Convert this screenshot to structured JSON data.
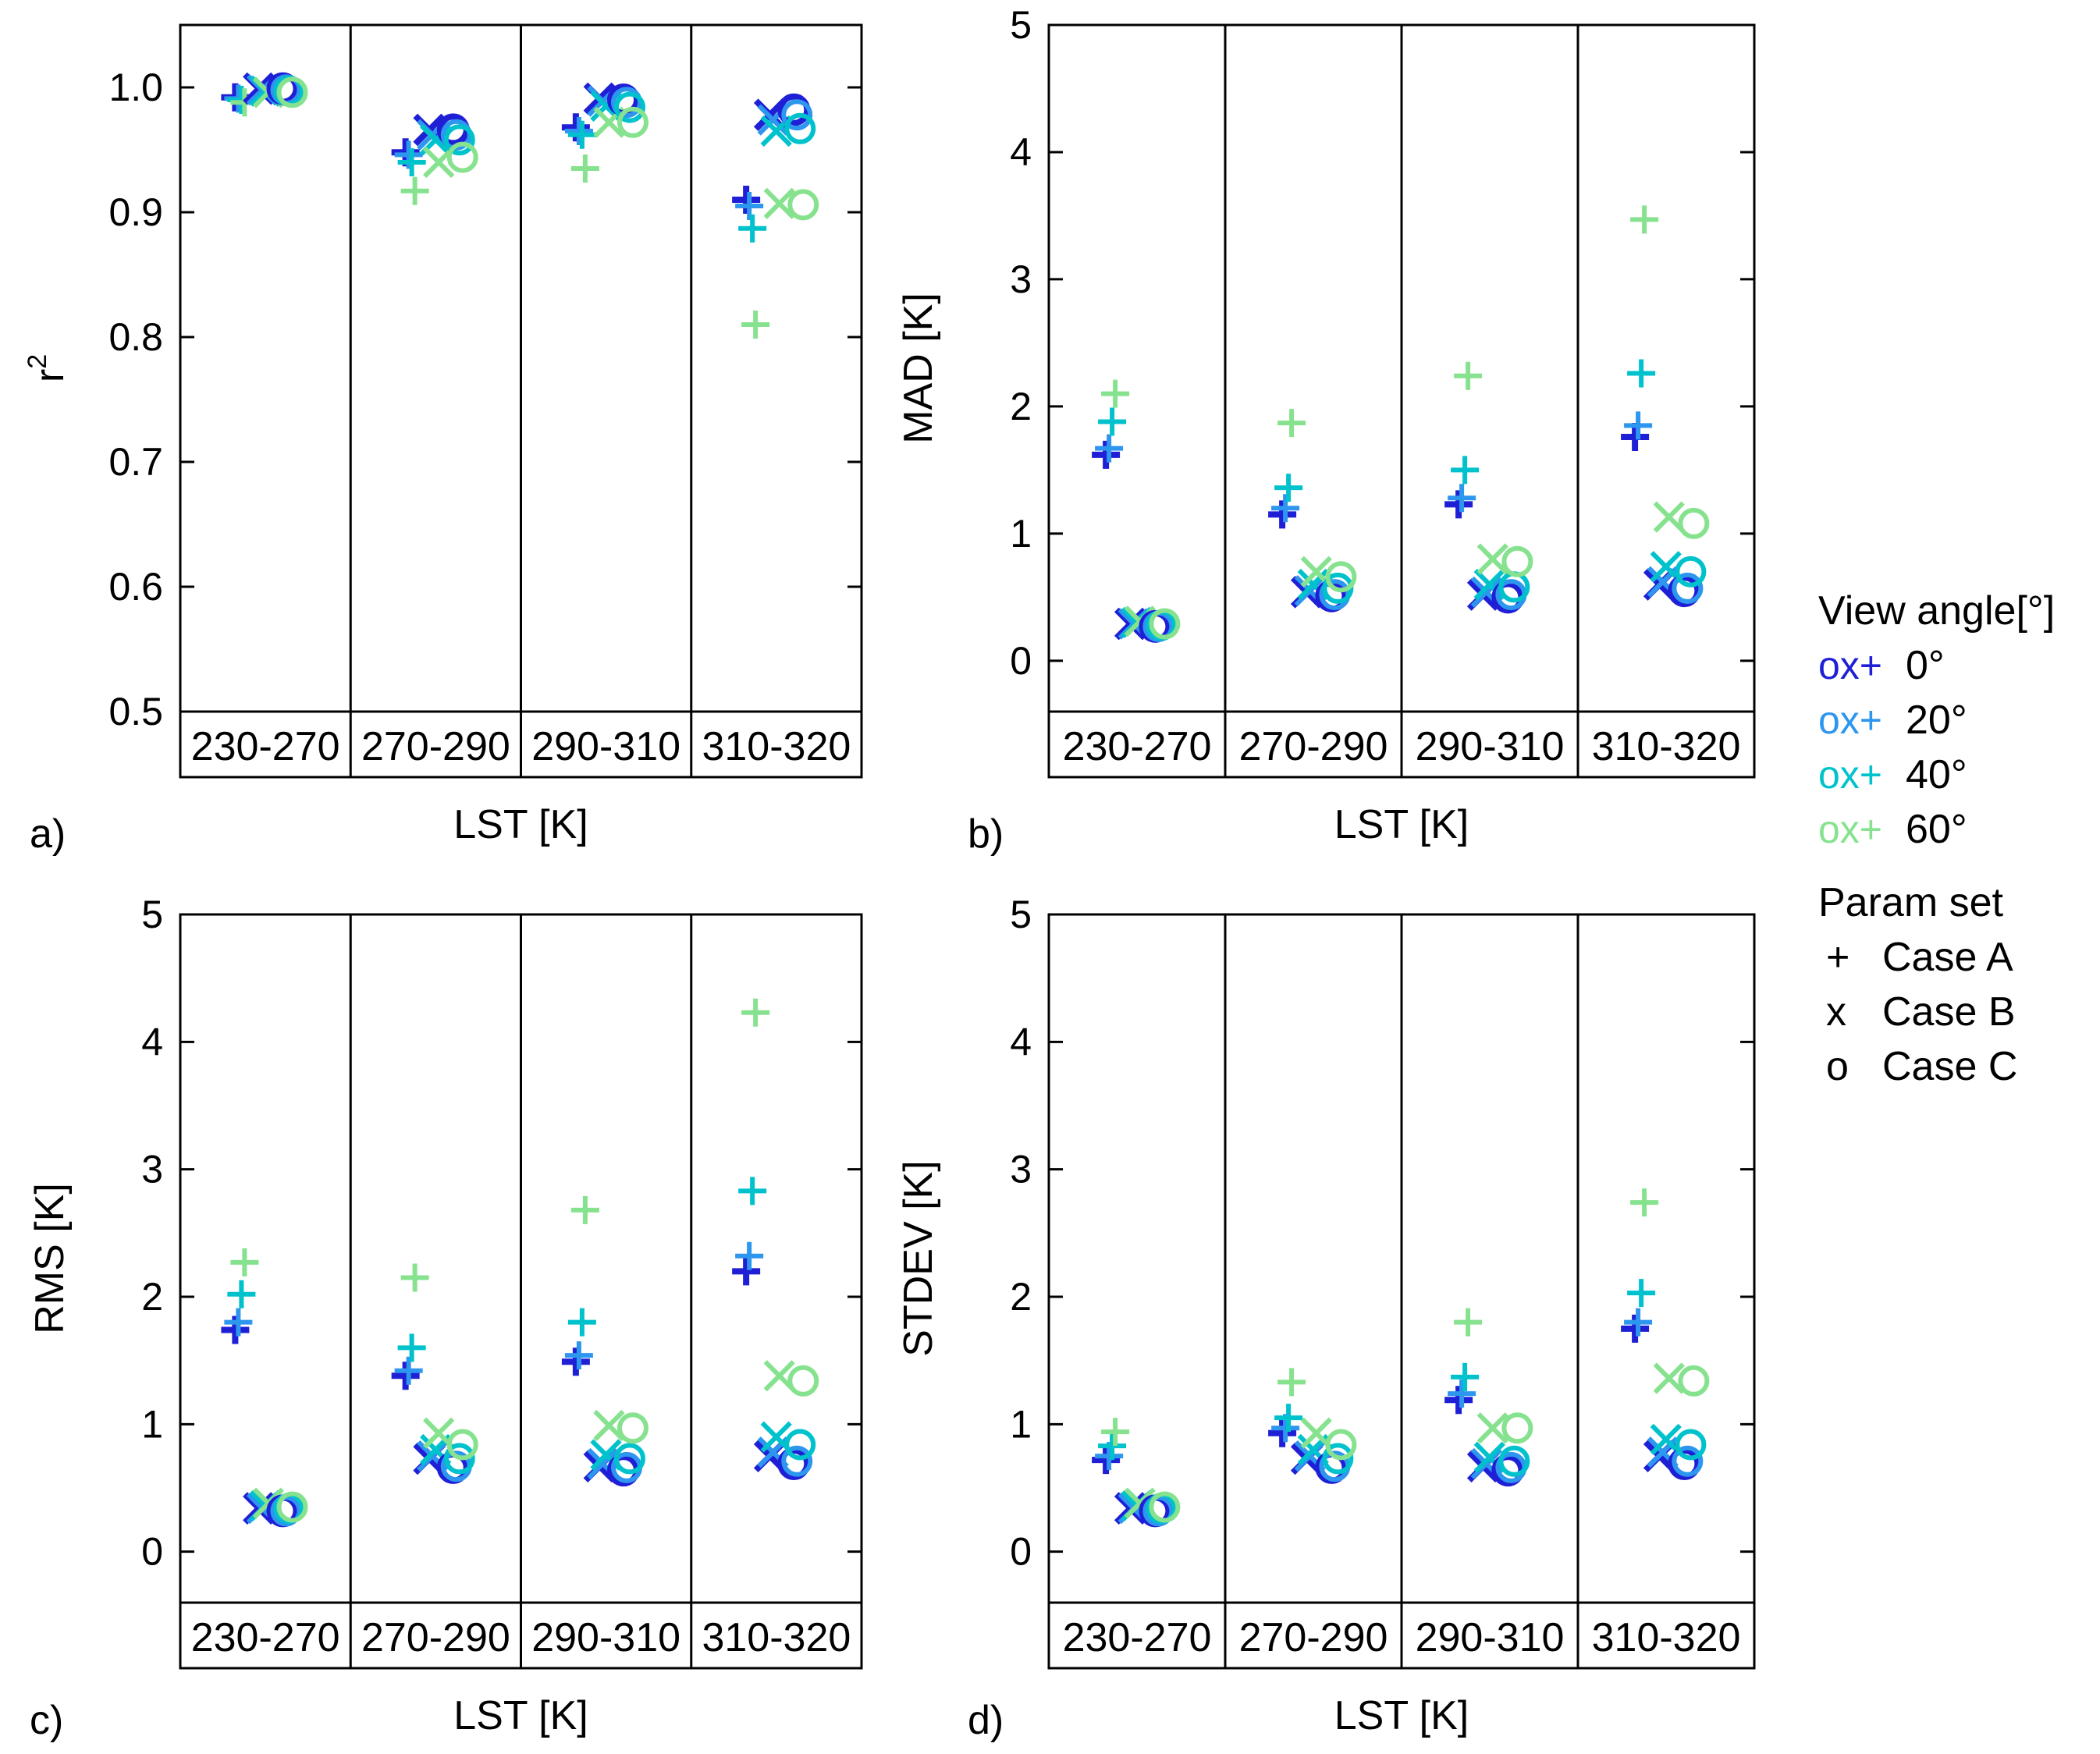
{
  "figure": {
    "panel_labels": [
      "a)",
      "b)",
      "c)",
      "d)"
    ]
  },
  "legend": {
    "view_angle_title": "View angle[°]",
    "angles": [
      {
        "label": "0°",
        "color": "#1f1fd6"
      },
      {
        "label": "20°",
        "color": "#2d96ee"
      },
      {
        "label": "40°",
        "color": "#00c2cc"
      },
      {
        "label": "60°",
        "color": "#86e28e"
      }
    ],
    "marker_sample": "ox+",
    "param_title": "Param set",
    "cases": [
      {
        "symbol": "+",
        "label": "Case A"
      },
      {
        "symbol": "x",
        "label": "Case B"
      },
      {
        "symbol": "o",
        "label": "Case C"
      }
    ]
  },
  "chart_data": [
    {
      "type": "scatter",
      "panel": "a)",
      "ylabel": "r",
      "ylabel_superscript": "2",
      "xlabel": "LST [K]",
      "categories": [
        "230-270",
        "270-290",
        "290-310",
        "310-320"
      ],
      "ylim": [
        0.5,
        1.05
      ],
      "yticks": [
        0.5,
        0.6,
        0.7,
        0.8,
        0.9,
        1.0
      ],
      "ytick_labels": [
        "0.5",
        "0.6",
        "0.7",
        "0.8",
        "0.9",
        "1.0"
      ],
      "series": [
        {
          "angle": "0°",
          "case": "Case A",
          "values": [
            0.992,
            0.948,
            0.968,
            0.91
          ]
        },
        {
          "angle": "20°",
          "case": "Case A",
          "values": [
            0.991,
            0.946,
            0.965,
            0.905
          ]
        },
        {
          "angle": "40°",
          "case": "Case A",
          "values": [
            0.99,
            0.94,
            0.962,
            0.887
          ]
        },
        {
          "angle": "60°",
          "case": "Case A",
          "values": [
            0.988,
            0.917,
            0.935,
            0.81
          ]
        },
        {
          "angle": "0°",
          "case": "Case B",
          "values": [
            0.999,
            0.966,
            0.991,
            0.978
          ]
        },
        {
          "angle": "20°",
          "case": "Case B",
          "values": [
            0.998,
            0.962,
            0.989,
            0.974
          ]
        },
        {
          "angle": "40°",
          "case": "Case B",
          "values": [
            0.997,
            0.958,
            0.985,
            0.965
          ]
        },
        {
          "angle": "60°",
          "case": "Case B",
          "values": [
            0.996,
            0.94,
            0.972,
            0.907
          ]
        },
        {
          "angle": "0°",
          "case": "Case C",
          "values": [
            0.999,
            0.966,
            0.99,
            0.982
          ]
        },
        {
          "angle": "20°",
          "case": "Case C",
          "values": [
            0.998,
            0.962,
            0.988,
            0.978
          ]
        },
        {
          "angle": "40°",
          "case": "Case C",
          "values": [
            0.997,
            0.958,
            0.984,
            0.967
          ]
        },
        {
          "angle": "60°",
          "case": "Case C",
          "values": [
            0.996,
            0.944,
            0.972,
            0.906
          ]
        }
      ]
    },
    {
      "type": "scatter",
      "panel": "b)",
      "ylabel": "MAD [K]",
      "xlabel": "LST [K]",
      "categories": [
        "230-270",
        "270-290",
        "290-310",
        "310-320"
      ],
      "ylim": [
        -0.4,
        5
      ],
      "yticks": [
        0,
        1,
        2,
        3,
        4,
        5
      ],
      "ytick_labels": [
        "0",
        "1",
        "2",
        "3",
        "4",
        "5"
      ],
      "series": [
        {
          "angle": "0°",
          "case": "Case A",
          "values": [
            1.62,
            1.15,
            1.23,
            1.76
          ]
        },
        {
          "angle": "20°",
          "case": "Case A",
          "values": [
            1.67,
            1.2,
            1.28,
            1.85
          ]
        },
        {
          "angle": "40°",
          "case": "Case A",
          "values": [
            1.88,
            1.36,
            1.5,
            2.26
          ]
        },
        {
          "angle": "60°",
          "case": "Case A",
          "values": [
            2.1,
            1.87,
            2.24,
            3.47
          ]
        },
        {
          "angle": "0°",
          "case": "Case B",
          "values": [
            0.29,
            0.54,
            0.52,
            0.6
          ]
        },
        {
          "angle": "20°",
          "case": "Case B",
          "values": [
            0.29,
            0.55,
            0.54,
            0.62
          ]
        },
        {
          "angle": "40°",
          "case": "Case B",
          "values": [
            0.3,
            0.6,
            0.6,
            0.74
          ]
        },
        {
          "angle": "60°",
          "case": "Case B",
          "values": [
            0.31,
            0.7,
            0.8,
            1.13
          ]
        },
        {
          "angle": "0°",
          "case": "Case C",
          "values": [
            0.27,
            0.51,
            0.5,
            0.55
          ]
        },
        {
          "angle": "20°",
          "case": "Case C",
          "values": [
            0.27,
            0.52,
            0.52,
            0.57
          ]
        },
        {
          "angle": "40°",
          "case": "Case C",
          "values": [
            0.28,
            0.57,
            0.58,
            0.7
          ]
        },
        {
          "angle": "60°",
          "case": "Case C",
          "values": [
            0.29,
            0.66,
            0.78,
            1.08
          ]
        }
      ]
    },
    {
      "type": "scatter",
      "panel": "c)",
      "ylabel": "RMS [K]",
      "xlabel": "LST [K]",
      "categories": [
        "230-270",
        "270-290",
        "290-310",
        "310-320"
      ],
      "ylim": [
        -0.4,
        5
      ],
      "yticks": [
        0,
        1,
        2,
        3,
        4,
        5
      ],
      "ytick_labels": [
        "0",
        "1",
        "2",
        "3",
        "4",
        "5"
      ],
      "series": [
        {
          "angle": "0°",
          "case": "Case A",
          "values": [
            1.74,
            1.38,
            1.49,
            2.2
          ]
        },
        {
          "angle": "20°",
          "case": "Case A",
          "values": [
            1.8,
            1.42,
            1.54,
            2.32
          ]
        },
        {
          "angle": "40°",
          "case": "Case A",
          "values": [
            2.02,
            1.6,
            1.8,
            2.83
          ]
        },
        {
          "angle": "60°",
          "case": "Case A",
          "values": [
            2.27,
            2.15,
            2.68,
            4.23
          ]
        },
        {
          "angle": "0°",
          "case": "Case B",
          "values": [
            0.34,
            0.73,
            0.67,
            0.75
          ]
        },
        {
          "angle": "20°",
          "case": "Case B",
          "values": [
            0.34,
            0.75,
            0.69,
            0.78
          ]
        },
        {
          "angle": "40°",
          "case": "Case B",
          "values": [
            0.36,
            0.8,
            0.76,
            0.9
          ]
        },
        {
          "angle": "60°",
          "case": "Case B",
          "values": [
            0.38,
            0.93,
            0.99,
            1.38
          ]
        },
        {
          "angle": "0°",
          "case": "Case C",
          "values": [
            0.32,
            0.66,
            0.64,
            0.69
          ]
        },
        {
          "angle": "20°",
          "case": "Case C",
          "values": [
            0.32,
            0.67,
            0.66,
            0.71
          ]
        },
        {
          "angle": "40°",
          "case": "Case C",
          "values": [
            0.34,
            0.73,
            0.73,
            0.84
          ]
        },
        {
          "angle": "60°",
          "case": "Case C",
          "values": [
            0.35,
            0.84,
            0.97,
            1.34
          ]
        }
      ]
    },
    {
      "type": "scatter",
      "panel": "d)",
      "ylabel": "STDEV [K]",
      "xlabel": "LST [K]",
      "categories": [
        "230-270",
        "270-290",
        "290-310",
        "310-320"
      ],
      "ylim": [
        -0.4,
        5
      ],
      "yticks": [
        0,
        1,
        2,
        3,
        4,
        5
      ],
      "ytick_labels": [
        "0",
        "1",
        "2",
        "3",
        "4",
        "5"
      ],
      "series": [
        {
          "angle": "0°",
          "case": "Case A",
          "values": [
            0.72,
            0.93,
            1.19,
            1.75
          ]
        },
        {
          "angle": "20°",
          "case": "Case A",
          "values": [
            0.75,
            0.97,
            1.24,
            1.8
          ]
        },
        {
          "angle": "40°",
          "case": "Case A",
          "values": [
            0.83,
            1.05,
            1.37,
            2.03
          ]
        },
        {
          "angle": "60°",
          "case": "Case A",
          "values": [
            0.94,
            1.33,
            1.8,
            2.74
          ]
        },
        {
          "angle": "0°",
          "case": "Case B",
          "values": [
            0.34,
            0.73,
            0.67,
            0.75
          ]
        },
        {
          "angle": "20°",
          "case": "Case B",
          "values": [
            0.34,
            0.75,
            0.69,
            0.78
          ]
        },
        {
          "angle": "40°",
          "case": "Case B",
          "values": [
            0.36,
            0.8,
            0.74,
            0.88
          ]
        },
        {
          "angle": "60°",
          "case": "Case B",
          "values": [
            0.38,
            0.93,
            0.97,
            1.36
          ]
        },
        {
          "angle": "0°",
          "case": "Case C",
          "values": [
            0.32,
            0.66,
            0.64,
            0.69
          ]
        },
        {
          "angle": "20°",
          "case": "Case C",
          "values": [
            0.32,
            0.67,
            0.66,
            0.71
          ]
        },
        {
          "angle": "40°",
          "case": "Case C",
          "values": [
            0.34,
            0.73,
            0.71,
            0.84
          ]
        },
        {
          "angle": "60°",
          "case": "Case C",
          "values": [
            0.35,
            0.84,
            0.97,
            1.34
          ]
        }
      ]
    }
  ]
}
